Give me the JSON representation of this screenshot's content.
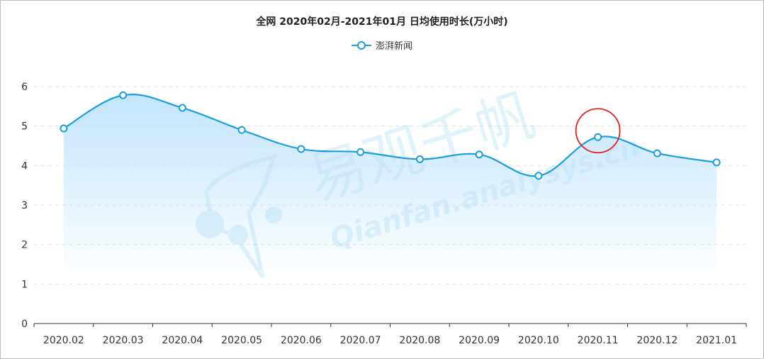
{
  "chart_data": {
    "type": "area",
    "title": "全网 2020年02月-2021年01月 日均使用时长(万小时)",
    "xlabel": "",
    "ylabel": "",
    "categories": [
      "2020.02",
      "2020.03",
      "2020.04",
      "2020.05",
      "2020.06",
      "2020.07",
      "2020.08",
      "2020.09",
      "2020.10",
      "2020.11",
      "2020.12",
      "2021.01"
    ],
    "series": [
      {
        "name": "澎湃新闻",
        "values": [
          4.94,
          5.78,
          5.46,
          4.9,
          4.42,
          4.34,
          4.16,
          4.28,
          3.74,
          4.72,
          4.31,
          4.08
        ]
      }
    ],
    "ylim": [
      0,
      6
    ],
    "yticks": [
      0,
      1,
      2,
      3,
      4,
      5,
      6
    ],
    "grid": true,
    "legend": "top-center",
    "series_color": "#1a9ee0",
    "fill_color_top": "#bfe3fb",
    "highlight": {
      "category": "2020.11",
      "color": "#e02020"
    }
  },
  "watermark": {
    "text_cn": "易观千帆",
    "text_en": "Qianfan.analysys.cn"
  }
}
